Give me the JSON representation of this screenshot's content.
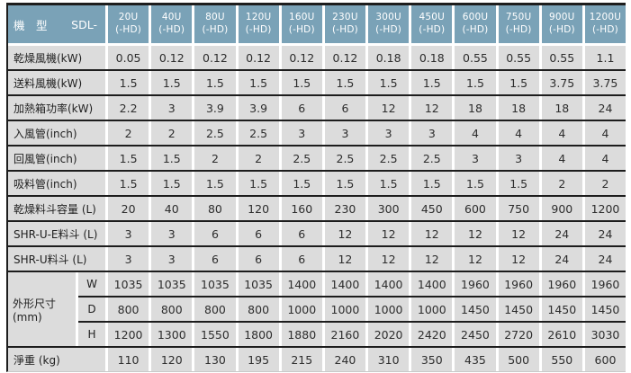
{
  "colors": {
    "header_bg": "#7aa2b7",
    "header_text": "#ffffff",
    "cell_bg": "#dcdcdc",
    "row_divider": "#1d1d1d",
    "cell_text": "#2d2d2d"
  },
  "table": {
    "header": {
      "label": "機　型",
      "prefix": "SDL-",
      "columns": [
        {
          "model": "20U",
          "variant": "(-HD)"
        },
        {
          "model": "40U",
          "variant": "(-HD)"
        },
        {
          "model": "80U",
          "variant": "(-HD)"
        },
        {
          "model": "120U",
          "variant": "(-HD)"
        },
        {
          "model": "160U",
          "variant": "(-HD)"
        },
        {
          "model": "230U",
          "variant": "(-HD)"
        },
        {
          "model": "300U",
          "variant": "(-HD)"
        },
        {
          "model": "450U",
          "variant": "(-HD)"
        },
        {
          "model": "600U",
          "variant": "(-HD)"
        },
        {
          "model": "750U",
          "variant": "(-HD)"
        },
        {
          "model": "900U",
          "variant": "(-HD)"
        },
        {
          "model": "1200U",
          "variant": "(-HD)"
        }
      ]
    },
    "rows": [
      {
        "label": "乾燥風機(kW)",
        "values": [
          "0.05",
          "0.12",
          "0.12",
          "0.12",
          "0.12",
          "0.12",
          "0.18",
          "0.18",
          "0.55",
          "0.55",
          "0.55",
          "1.1"
        ]
      },
      {
        "label": "送料風機(kW)",
        "values": [
          "1.5",
          "1.5",
          "1.5",
          "1.5",
          "1.5",
          "1.5",
          "1.5",
          "1.5",
          "1.5",
          "1.5",
          "3.75",
          "3.75"
        ]
      },
      {
        "label": "加熱箱功率(kW)",
        "values": [
          "2.2",
          "3",
          "3.9",
          "3.9",
          "6",
          "6",
          "12",
          "12",
          "18",
          "18",
          "18",
          "24"
        ]
      },
      {
        "label": "入風管(inch)",
        "values": [
          "2",
          "2",
          "2.5",
          "2.5",
          "3",
          "3",
          "3",
          "3",
          "4",
          "4",
          "4",
          "4"
        ]
      },
      {
        "label": "回風管(inch)",
        "values": [
          "1.5",
          "1.5",
          "2",
          "2",
          "2.5",
          "2.5",
          "2.5",
          "2.5",
          "3",
          "3",
          "4",
          "4"
        ]
      },
      {
        "label": "吸料管(inch)",
        "values": [
          "1.5",
          "1.5",
          "1.5",
          "1.5",
          "1.5",
          "1.5",
          "1.5",
          "1.5",
          "1.5",
          "1.5",
          "2",
          "2"
        ]
      },
      {
        "label": "乾燥料斗容量 (L)",
        "values": [
          "20",
          "40",
          "80",
          "120",
          "160",
          "230",
          "300",
          "450",
          "600",
          "750",
          "900",
          "1200"
        ]
      },
      {
        "label": "SHR-U-E料斗 (L)",
        "values": [
          "3",
          "3",
          "6",
          "6",
          "6",
          "12",
          "12",
          "12",
          "12",
          "12",
          "24",
          "24"
        ]
      },
      {
        "label": "SHR-U料斗 (L)",
        "values": [
          "3",
          "3",
          "6",
          "6",
          "6",
          "12",
          "12",
          "12",
          "12",
          "12",
          "24",
          "24"
        ]
      }
    ],
    "dimensions": {
      "label": "外形尺寸(mm)",
      "sub_rows": [
        {
          "label": "W",
          "values": [
            "1035",
            "1035",
            "1035",
            "1035",
            "1400",
            "1400",
            "1400",
            "1400",
            "1960",
            "1960",
            "1960",
            "1960"
          ]
        },
        {
          "label": "D",
          "values": [
            "800",
            "800",
            "800",
            "800",
            "1000",
            "1000",
            "1000",
            "1000",
            "1450",
            "1450",
            "1450",
            "1450"
          ]
        },
        {
          "label": "H",
          "values": [
            "1200",
            "1300",
            "1550",
            "1800",
            "1880",
            "2160",
            "2020",
            "2420",
            "2450",
            "2720",
            "2610",
            "3030"
          ]
        }
      ]
    },
    "weight_row": {
      "label": "淨重 (kg)",
      "values": [
        "110",
        "120",
        "130",
        "195",
        "215",
        "240",
        "310",
        "350",
        "435",
        "500",
        "550",
        "600"
      ]
    }
  }
}
